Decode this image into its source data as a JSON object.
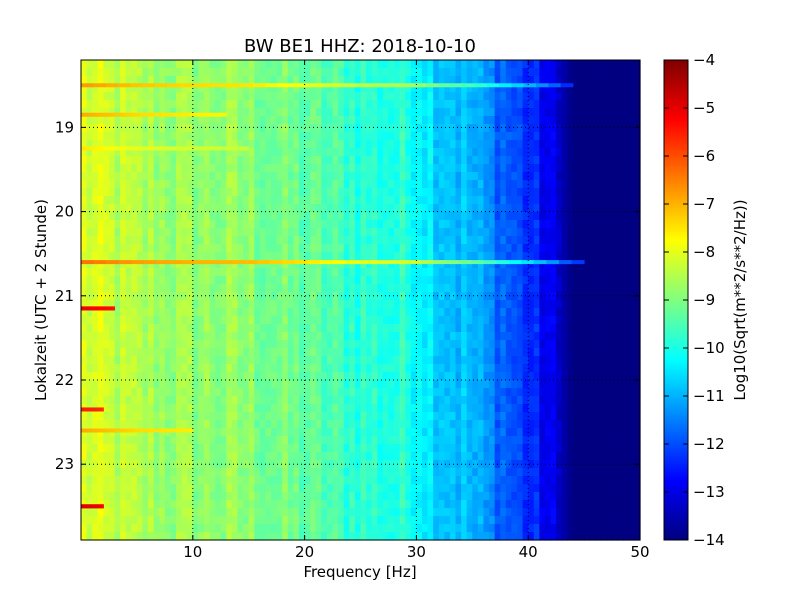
{
  "chart_data": {
    "type": "heatmap",
    "title": "BW BE1 HHZ: 2018-10-10",
    "xlabel": "Frequency [Hz]",
    "ylabel": "Lokalzeit (UTC + 2 Stunde)",
    "xlim": [
      0,
      50
    ],
    "ylim": [
      18.2,
      23.9
    ],
    "y_inverted": true,
    "xticks": [
      10,
      20,
      30,
      40,
      50
    ],
    "yticks": [
      19,
      20,
      21,
      22,
      23
    ],
    "grid": true,
    "colormap": "jet",
    "colorbar": {
      "label": "Log10(Sqrt(m**2/s**2/Hz))",
      "range": [
        -14,
        -4
      ],
      "ticks": [
        -4,
        -5,
        -6,
        -7,
        -8,
        -9,
        -10,
        -11,
        -12,
        -13,
        -14
      ]
    },
    "frequency_profile": [
      {
        "x": 0,
        "value": -8.1
      },
      {
        "x": 5,
        "value": -8.6
      },
      {
        "x": 10,
        "value": -8.8
      },
      {
        "x": 15,
        "value": -8.9
      },
      {
        "x": 20,
        "value": -9.3
      },
      {
        "x": 25,
        "value": -9.8
      },
      {
        "x": 30,
        "value": -10.0
      },
      {
        "x": 32,
        "value": -10.6
      },
      {
        "x": 35,
        "value": -11.0
      },
      {
        "x": 38,
        "value": -11.8
      },
      {
        "x": 40,
        "value": -12.3
      },
      {
        "x": 42,
        "value": -13.0
      },
      {
        "x": 44,
        "value": -14.0
      },
      {
        "x": 50,
        "value": -14.0
      }
    ],
    "events": [
      {
        "time": 18.5,
        "fmax": 44,
        "boost": 1.4
      },
      {
        "time": 18.85,
        "fmax": 13,
        "boost": 1.2
      },
      {
        "time": 19.25,
        "fmax": 15,
        "boost": 0.6
      },
      {
        "time": 20.6,
        "fmax": 45,
        "boost": 1.8
      },
      {
        "time": 21.15,
        "fmax": 3,
        "boost": 3.0
      },
      {
        "time": 22.35,
        "fmax": 2,
        "boost": 2.6
      },
      {
        "time": 22.6,
        "fmax": 10,
        "boost": 1.2
      },
      {
        "time": 23.5,
        "fmax": 2,
        "boost": 3.2
      }
    ]
  }
}
